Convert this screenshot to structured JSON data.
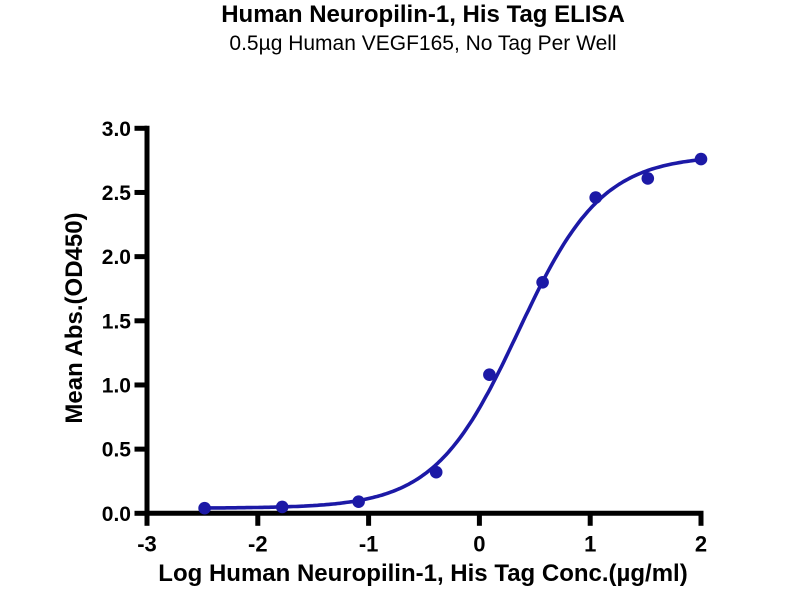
{
  "chart_data": {
    "type": "scatter",
    "title": "Human Neuropilin-1, His Tag ELISA",
    "subtitle": "0.5µg Human VEGF165, No Tag Per Well",
    "xlabel": "Log Human Neuropilin-1, His Tag Conc.(µg/ml)",
    "ylabel": "Mean Abs.(OD450)",
    "xlim": [
      -3,
      2
    ],
    "ylim": [
      0,
      3
    ],
    "x_ticks": [
      "-3",
      "-2",
      "-1",
      "0",
      "1",
      "2"
    ],
    "y_ticks": [
      "0.0",
      "0.5",
      "1.0",
      "1.5",
      "2.0",
      "2.5",
      "3.0"
    ],
    "grid": false,
    "legend": "none",
    "axis_color": "#000000",
    "series": [
      {
        "name": "Human Neuropilin-1, His Tag",
        "marker_color": "#1c19a6",
        "line_color": "#1c19a6",
        "points": [
          {
            "log_conc": -2.48,
            "od": 0.04
          },
          {
            "log_conc": -1.78,
            "od": 0.05
          },
          {
            "log_conc": -1.09,
            "od": 0.09
          },
          {
            "log_conc": -0.39,
            "od": 0.32
          },
          {
            "log_conc": 0.09,
            "od": 1.08
          },
          {
            "log_conc": 0.57,
            "od": 1.8
          },
          {
            "log_conc": 1.05,
            "od": 2.46
          },
          {
            "log_conc": 1.52,
            "od": 2.61
          },
          {
            "log_conc": 2.0,
            "od": 2.76
          }
        ]
      }
    ],
    "fit_curve": {
      "model": "4PL",
      "bottom": 0.04,
      "top": 2.79,
      "log_ec50": 0.35,
      "hill_slope": 1.15,
      "x_start": -2.48,
      "x_end": 2.0
    }
  }
}
